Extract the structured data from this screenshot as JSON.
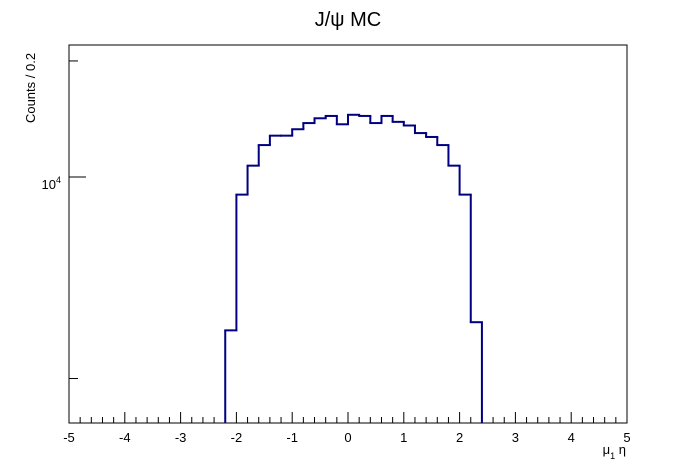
{
  "chart_data": {
    "type": "histogram",
    "title": "J/ψ MC",
    "xlabel": {
      "main": "μ",
      "sub": "1",
      "after": " η"
    },
    "ylabel": "Counts / 0.2",
    "xlim": [
      -5,
      5
    ],
    "ylim": [
      2300,
      22000
    ],
    "yscale": "log",
    "bin_width": 0.2,
    "x_ticks": [
      -5,
      -4,
      -3,
      -2,
      -1,
      0,
      1,
      2,
      3,
      4,
      5
    ],
    "x_tick_labels": [
      "-5",
      "-4",
      "-3",
      "-2",
      "-1",
      "0",
      "1",
      "2",
      "3",
      "4",
      "5"
    ],
    "y_labeled_tick": {
      "base": "10",
      "exp": "4",
      "value": 10000
    },
    "y_minor_ticks": [
      3000,
      20000
    ],
    "line_color": "#000080",
    "bins": [
      {
        "lo": -2.2,
        "hi": -2.0,
        "value": 4000
      },
      {
        "lo": -2.0,
        "hi": -1.8,
        "value": 9000
      },
      {
        "lo": -1.8,
        "hi": -1.6,
        "value": 10700
      },
      {
        "lo": -1.6,
        "hi": -1.4,
        "value": 12100
      },
      {
        "lo": -1.4,
        "hi": -1.2,
        "value": 12800
      },
      {
        "lo": -1.2,
        "hi": -1.0,
        "value": 12800
      },
      {
        "lo": -1.0,
        "hi": -0.8,
        "value": 13300
      },
      {
        "lo": -0.8,
        "hi": -0.6,
        "value": 13800
      },
      {
        "lo": -0.6,
        "hi": -0.4,
        "value": 14200
      },
      {
        "lo": -0.4,
        "hi": -0.2,
        "value": 14400
      },
      {
        "lo": -0.2,
        "hi": 0.0,
        "value": 13700
      },
      {
        "lo": 0.0,
        "hi": 0.2,
        "value": 14500
      },
      {
        "lo": 0.2,
        "hi": 0.4,
        "value": 14400
      },
      {
        "lo": 0.4,
        "hi": 0.6,
        "value": 13800
      },
      {
        "lo": 0.6,
        "hi": 0.8,
        "value": 14400
      },
      {
        "lo": 0.8,
        "hi": 1.0,
        "value": 13900
      },
      {
        "lo": 1.0,
        "hi": 1.2,
        "value": 13600
      },
      {
        "lo": 1.2,
        "hi": 1.4,
        "value": 13000
      },
      {
        "lo": 1.4,
        "hi": 1.6,
        "value": 12700
      },
      {
        "lo": 1.6,
        "hi": 1.8,
        "value": 12100
      },
      {
        "lo": 1.8,
        "hi": 2.0,
        "value": 10700
      },
      {
        "lo": 2.0,
        "hi": 2.2,
        "value": 9000
      },
      {
        "lo": 2.2,
        "hi": 2.4,
        "value": 4200
      }
    ]
  }
}
